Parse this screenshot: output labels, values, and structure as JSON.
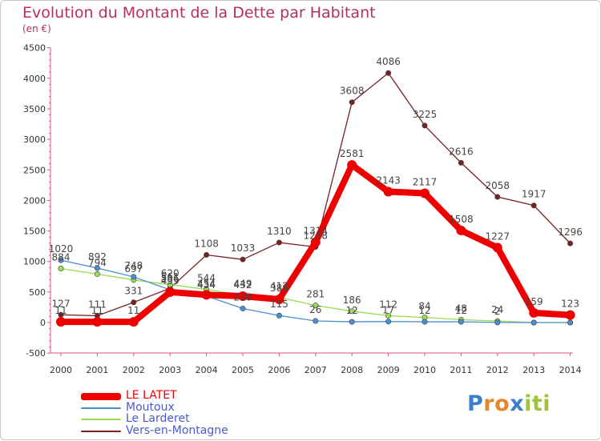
{
  "title": "Evolution du Montant de la Dette par Habitant",
  "subtitle": "(en €)",
  "brand": {
    "text": "Proxiti",
    "letters": [
      "P",
      "r",
      "o",
      "x",
      "i",
      "t",
      "i"
    ],
    "colors": [
      "#3a7fc8",
      "#e8852a",
      "#e8852a",
      "#3a7fc8",
      "#9dc43b",
      "#9dc43b",
      "#9dc43b"
    ]
  },
  "chart_data": {
    "type": "line",
    "categories": [
      "2000",
      "2001",
      "2002",
      "2003",
      "2004",
      "2005",
      "2006",
      "2007",
      "2008",
      "2009",
      "2010",
      "2011",
      "2012",
      "2013",
      "2014"
    ],
    "ylim": [
      -500,
      4500
    ],
    "yticks": [
      "-500",
      "0",
      "500",
      "1000",
      "1500",
      "2000",
      "2500",
      "3000",
      "3500",
      "4000",
      "4500"
    ],
    "grid": false,
    "legend_position": "bottom-left",
    "series": [
      {
        "name": "LE LATET",
        "color": "#ee0000",
        "values": [
          11,
          11,
          11,
          499,
          454,
          432,
          380,
          1314,
          2581,
          2143,
          2117,
          1508,
          1227,
          159,
          123
        ],
        "labels": [
          "11",
          "11",
          "11",
          "499",
          "454",
          "432",
          "380",
          "1314",
          "2581",
          "2143",
          "2117",
          "1508",
          "1227",
          "159",
          "123"
        ]
      },
      {
        "name": "Moutoux",
        "color": "#4a8fd0",
        "values": [
          1020,
          892,
          748,
          536,
          434,
          230,
          115,
          26,
          12,
          17,
          12,
          12,
          2,
          0,
          0
        ],
        "labels": [
          "1020",
          "892",
          "748",
          "536",
          "434",
          "230",
          "115",
          "26",
          "12",
          "17",
          "12",
          "12",
          "2",
          "",
          ""
        ]
      },
      {
        "name": "Le Larderet",
        "color": "#99dd55",
        "values": [
          884,
          794,
          697,
          620,
          544,
          449,
          412,
          281,
          186,
          112,
          84,
          48,
          24,
          0,
          0
        ],
        "labels": [
          "884",
          "794",
          "697",
          "620",
          "544",
          "449",
          "412",
          "281",
          "186",
          "112",
          "84",
          "48",
          "24",
          "",
          ""
        ]
      },
      {
        "name": "Vers-en-Montagne",
        "color": "#772222",
        "values": [
          127,
          111,
          331,
          561,
          1108,
          1033,
          1310,
          1238,
          3608,
          4086,
          3225,
          2616,
          2058,
          1917,
          1296
        ],
        "labels": [
          "127",
          "111",
          "331",
          "561",
          "1108",
          "1033",
          "1310",
          "1238",
          "3608",
          "4086",
          "3225",
          "2616",
          "2058",
          "1917",
          "1296"
        ]
      }
    ]
  }
}
